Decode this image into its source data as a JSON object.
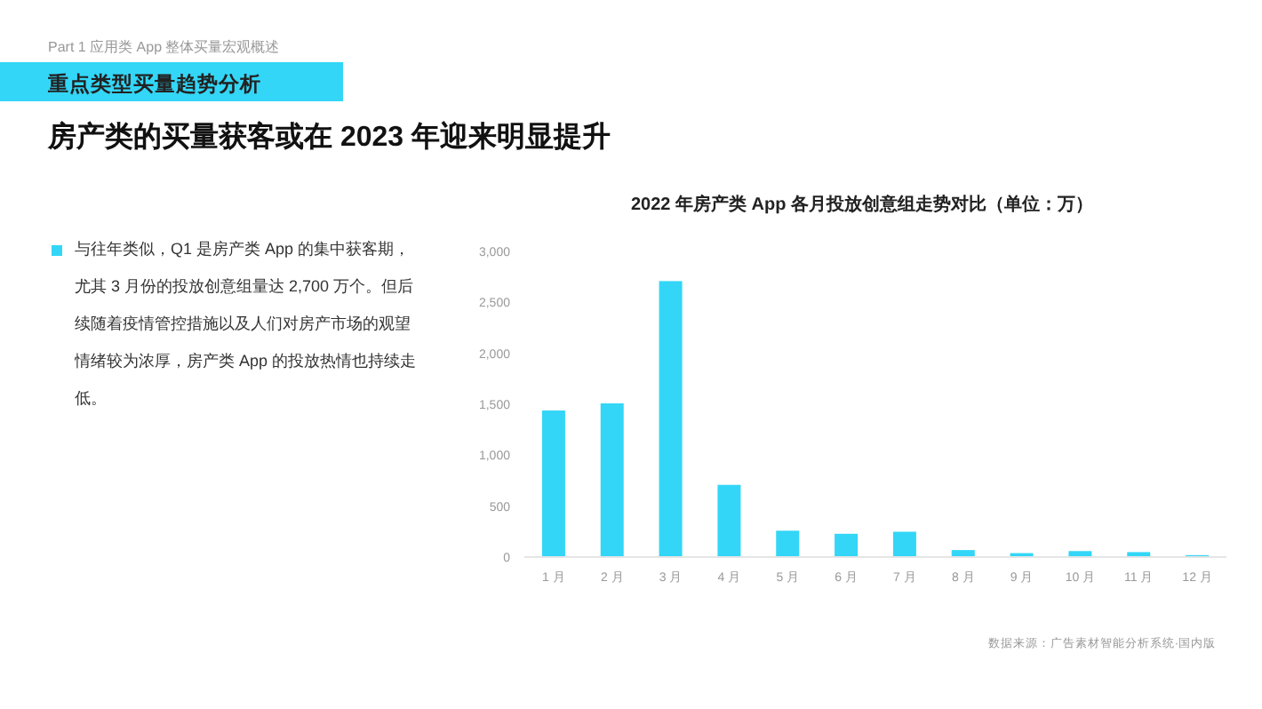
{
  "chart_data": {
    "type": "bar",
    "title": "房产类的买量获客或在 2023 年迎来明显提升",
    "subtitle": "2022 年房产类 App 各月投放创意组走势对比（单位：万）",
    "annotations": [
      "Part 1 应用类 App 整体买量宏观概述",
      "重点类型买量趋势分析",
      "与往年类似，Q1 是房产类 App 的集中获客期，尤其 3 月份的投放创意组量达 2,700 万个。但后续随着疫情管控措施以及人们对房产市场的观望情绪较为浓厚，房产类 App 的投放热情也持续走低。",
      "数据来源：广告素材智能分析系统·国内版"
    ],
    "categories": [
      "1 月",
      "2 月",
      "3 月",
      "4 月",
      "5 月",
      "6 月",
      "7 月",
      "8 月",
      "9 月",
      "10 月",
      "11 月",
      "12 月"
    ],
    "values": [
      1430,
      1500,
      2700,
      700,
      250,
      220,
      240,
      60,
      30,
      50,
      40,
      10
    ],
    "color": "#33d6f7",
    "ylim": [
      0,
      3000
    ],
    "yticks": [
      {
        "value": 0,
        "label": "0"
      },
      {
        "value": 500,
        "label": "500"
      },
      {
        "value": 1000,
        "label": "1,000"
      },
      {
        "value": 1500,
        "label": "1,500"
      },
      {
        "value": 2000,
        "label": "2,000"
      },
      {
        "value": 2500,
        "label": "2,500"
      },
      {
        "value": 3000,
        "label": "3,000"
      }
    ],
    "grid": false
  }
}
